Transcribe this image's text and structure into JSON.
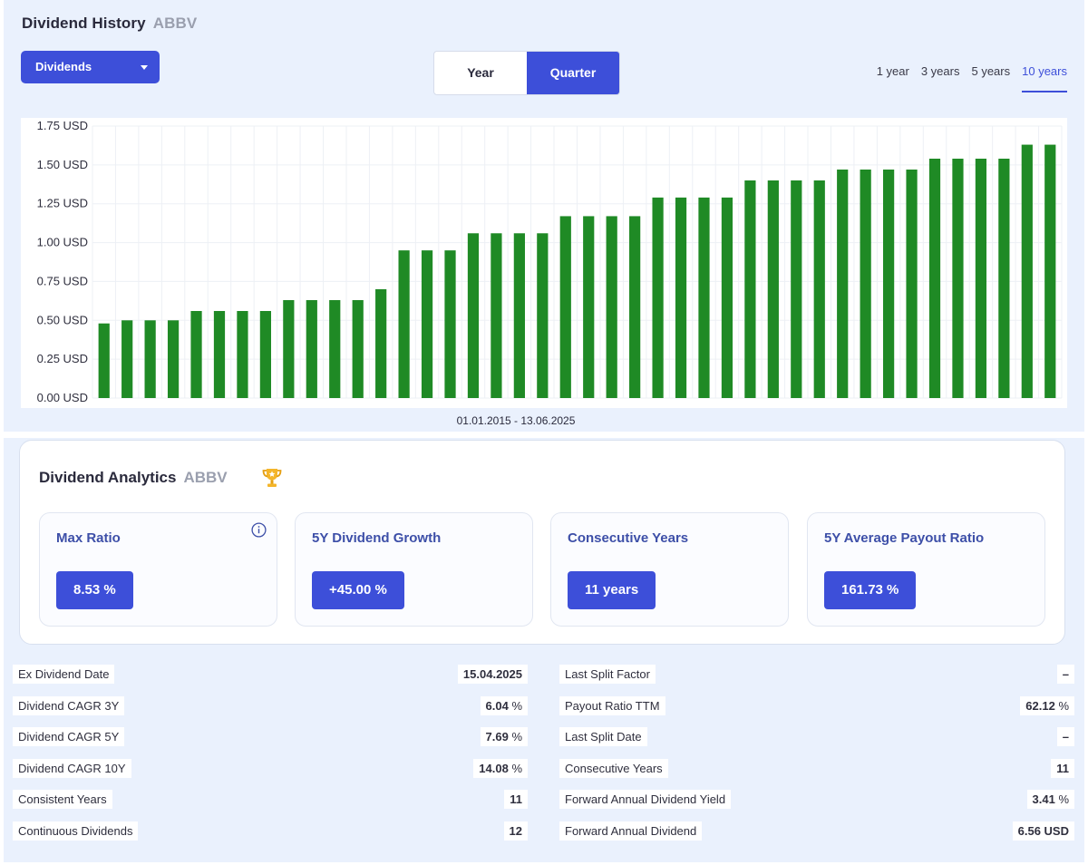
{
  "history": {
    "title": "Dividend History",
    "ticker": "ABBV",
    "dropdown_label": "Dividends",
    "toggle": [
      "Year",
      "Quarter"
    ],
    "toggle_active": "Quarter",
    "ranges": [
      "1 year",
      "3 years",
      "5 years",
      "10 years"
    ],
    "range_active": "10 years",
    "date_range": "01.01.2015 - 13.06.2025"
  },
  "chart_data": {
    "type": "bar",
    "y_ticks": [
      "0.00 USD",
      "0.25 USD",
      "0.50 USD",
      "0.75 USD",
      "1.00 USD",
      "1.25 USD",
      "1.50 USD",
      "1.75 USD"
    ],
    "ylim": [
      0,
      1.75
    ],
    "y_unit": "USD",
    "grid": true,
    "bar_color": "#1f8a25",
    "values": [
      0.48,
      0.5,
      0.5,
      0.5,
      0.56,
      0.56,
      0.56,
      0.56,
      0.63,
      0.63,
      0.63,
      0.63,
      0.7,
      0.95,
      0.95,
      0.95,
      1.06,
      1.06,
      1.06,
      1.06,
      1.17,
      1.17,
      1.17,
      1.17,
      1.29,
      1.29,
      1.29,
      1.29,
      1.4,
      1.4,
      1.4,
      1.4,
      1.47,
      1.47,
      1.47,
      1.47,
      1.54,
      1.54,
      1.54,
      1.54,
      1.63,
      1.63
    ]
  },
  "analytics": {
    "title": "Dividend Analytics",
    "ticker": "ABBV",
    "cards": [
      {
        "label": "Max Ratio",
        "value": "8.53 %"
      },
      {
        "label": "5Y Dividend Growth",
        "value": "+45.00 %"
      },
      {
        "label": "Consecutive Years",
        "value": "11 years"
      },
      {
        "label": "5Y Average Payout Ratio",
        "value": "161.73 %"
      }
    ]
  },
  "stats": {
    "left": [
      {
        "label": "Ex Dividend Date",
        "value": "15.04.2025",
        "unit": ""
      },
      {
        "label": "Dividend CAGR 3Y",
        "value": "6.04",
        "unit": " %"
      },
      {
        "label": "Dividend CAGR 5Y",
        "value": "7.69",
        "unit": " %"
      },
      {
        "label": "Dividend CAGR 10Y",
        "value": "14.08",
        "unit": " %"
      },
      {
        "label": "Consistent Years",
        "value": "11",
        "unit": ""
      },
      {
        "label": "Continuous Dividends",
        "value": "12",
        "unit": ""
      }
    ],
    "right": [
      {
        "label": "Last Split Factor",
        "value": "–",
        "unit": ""
      },
      {
        "label": "Payout Ratio TTM",
        "value": "62.12",
        "unit": " %"
      },
      {
        "label": "Last Split Date",
        "value": "–",
        "unit": ""
      },
      {
        "label": "Consecutive Years",
        "value": "11",
        "unit": ""
      },
      {
        "label": "Forward Annual Dividend Yield",
        "value": "3.41",
        "unit": " %"
      },
      {
        "label": "Forward Annual Dividend",
        "value": "6.56 USD",
        "unit": ""
      }
    ]
  }
}
